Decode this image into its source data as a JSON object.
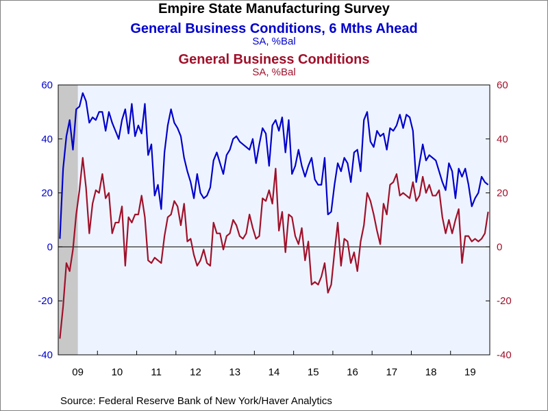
{
  "title": "Empire State Manufacturing Survey",
  "series_titles": [
    {
      "text": "General Business Conditions, 6 Mths Ahead",
      "unit": "SA, %Bal",
      "color": "#0000cc"
    },
    {
      "text": "General Business Conditions",
      "unit": "SA, %Bal",
      "color": "#a0102a"
    }
  ],
  "source": "Source:  Federal Reserve Bank of New York/Haver Analytics",
  "chart_data": {
    "type": "line",
    "frequency": "monthly",
    "start": "2009-01",
    "end": "2019-12",
    "ylim_left": [
      -40,
      60
    ],
    "ylim_right": [
      -40,
      60
    ],
    "yticks_left": [
      "60",
      "40",
      "20",
      "0",
      "-20",
      "-40"
    ],
    "yticks_right": [
      "60",
      "40",
      "20",
      "0",
      "-20",
      "-40"
    ],
    "year_labels": [
      "09",
      "10",
      "11",
      "12",
      "13",
      "14",
      "15",
      "16",
      "17",
      "18",
      "19"
    ],
    "recession_shading": [
      "2009-01",
      "2009-06"
    ],
    "plot_background": "#eef4ff",
    "zero_line": true,
    "series": [
      {
        "name": "General Business Conditions, 6 Mths Ahead",
        "axis": "left",
        "color": "#0000cc",
        "values": [
          3,
          29,
          41,
          47,
          36,
          51,
          52,
          57,
          54,
          46,
          48,
          47,
          50,
          50,
          43,
          50,
          46,
          43,
          40,
          47,
          51,
          42,
          53,
          41,
          45,
          42,
          53,
          34,
          38,
          19,
          23,
          14,
          35,
          45,
          51,
          46,
          44,
          41,
          33,
          28,
          24,
          18,
          27,
          20,
          18,
          19,
          22,
          32,
          35,
          31,
          27,
          34,
          36,
          40,
          41,
          39,
          38,
          37,
          36,
          40,
          31,
          38,
          44,
          42,
          30,
          45,
          47,
          43,
          48,
          35,
          47,
          27,
          30,
          36,
          30,
          26,
          30,
          33,
          25,
          23,
          23,
          33,
          12,
          13,
          23,
          31,
          28,
          33,
          31,
          24,
          35,
          36,
          28,
          47,
          50,
          39,
          37,
          43,
          41,
          42,
          36,
          44,
          43,
          45,
          49,
          44,
          49,
          48,
          43,
          24,
          31,
          38,
          32,
          34,
          33,
          32,
          28,
          24,
          21,
          31,
          28,
          18,
          29,
          26,
          29,
          23,
          15,
          18,
          20,
          26,
          24,
          23
        ]
      },
      {
        "name": "General Business Conditions",
        "axis": "right",
        "color": "#a0102a",
        "values": [
          -34,
          -22,
          -6,
          -9,
          -1,
          12,
          21,
          33,
          22,
          5,
          16,
          21,
          20,
          27,
          18,
          20,
          5,
          9,
          9,
          15,
          -7,
          11,
          9,
          12,
          12,
          19,
          11,
          -5,
          -6,
          -4,
          -5,
          -6,
          4,
          11,
          12,
          17,
          15,
          8,
          16,
          2,
          3,
          -3,
          -7,
          -5,
          -1,
          -6,
          -7,
          9,
          5,
          5,
          -1,
          4,
          5,
          10,
          8,
          4,
          3,
          5,
          12,
          7,
          3,
          4,
          18,
          17,
          21,
          16,
          29,
          6,
          13,
          -2,
          12,
          11,
          4,
          1,
          7,
          -5,
          2,
          -14,
          -13,
          -14,
          -11,
          -6,
          -17,
          -14,
          -2,
          9,
          -7,
          3,
          2,
          -6,
          -2,
          -9,
          2,
          8,
          20,
          17,
          12,
          6,
          1,
          16,
          12,
          23,
          24,
          27,
          19,
          20,
          19,
          18,
          24,
          17,
          19,
          26,
          20,
          23,
          19,
          19,
          21,
          11,
          5,
          10,
          5,
          10,
          14,
          -6,
          4,
          4,
          2,
          3,
          2,
          3,
          5,
          13
        ]
      }
    ]
  }
}
